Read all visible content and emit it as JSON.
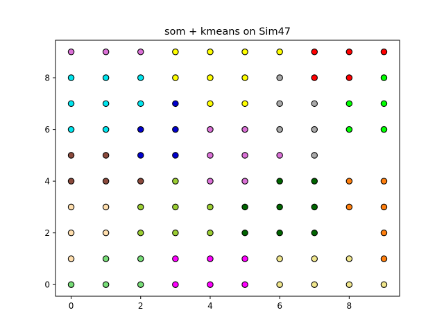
{
  "chart_data": {
    "type": "scatter",
    "title": "som + kmeans on Sim47",
    "xlabel": "",
    "ylabel": "",
    "xlim": [
      -0.45,
      9.45
    ],
    "ylim": [
      -0.45,
      9.45
    ],
    "xticks": [
      0,
      2,
      4,
      6,
      8
    ],
    "yticks": [
      0,
      2,
      4,
      6,
      8
    ],
    "grid": false,
    "legend": "none",
    "marker_edge_color": "#000000",
    "cluster_colors": {
      "lightgreen": "#77dd77",
      "magenta": "#ff00ff",
      "khaki": "#f0e68c",
      "orange": "#ff7f0e",
      "wheat": "#ffdead",
      "olive": "#9acd32",
      "darkgreen": "#006400",
      "sienna": "#8b4a3c",
      "pink": "#da70d6",
      "blue": "#0000cd",
      "cyan": "#00e5ee",
      "yellow": "#ffff00",
      "gray": "#a9a9a9",
      "red": "#ff0000",
      "green": "#00ff00"
    },
    "points": [
      {
        "x": 0,
        "y": 0,
        "c": "lightgreen"
      },
      {
        "x": 1,
        "y": 0,
        "c": "lightgreen"
      },
      {
        "x": 2,
        "y": 0,
        "c": "lightgreen"
      },
      {
        "x": 3,
        "y": 0,
        "c": "magenta"
      },
      {
        "x": 4,
        "y": 0,
        "c": "magenta"
      },
      {
        "x": 5,
        "y": 0,
        "c": "magenta"
      },
      {
        "x": 6,
        "y": 0,
        "c": "khaki"
      },
      {
        "x": 7,
        "y": 0,
        "c": "khaki"
      },
      {
        "x": 8,
        "y": 0,
        "c": "khaki"
      },
      {
        "x": 9,
        "y": 0,
        "c": "khaki"
      },
      {
        "x": 0,
        "y": 1,
        "c": "wheat"
      },
      {
        "x": 1,
        "y": 1,
        "c": "lightgreen"
      },
      {
        "x": 2,
        "y": 1,
        "c": "lightgreen"
      },
      {
        "x": 3,
        "y": 1,
        "c": "magenta"
      },
      {
        "x": 4,
        "y": 1,
        "c": "magenta"
      },
      {
        "x": 5,
        "y": 1,
        "c": "magenta"
      },
      {
        "x": 6,
        "y": 1,
        "c": "khaki"
      },
      {
        "x": 7,
        "y": 1,
        "c": "khaki"
      },
      {
        "x": 8,
        "y": 1,
        "c": "khaki"
      },
      {
        "x": 9,
        "y": 1,
        "c": "orange"
      },
      {
        "x": 0,
        "y": 2,
        "c": "wheat"
      },
      {
        "x": 1,
        "y": 2,
        "c": "wheat"
      },
      {
        "x": 2,
        "y": 2,
        "c": "olive"
      },
      {
        "x": 3,
        "y": 2,
        "c": "olive"
      },
      {
        "x": 4,
        "y": 2,
        "c": "olive"
      },
      {
        "x": 5,
        "y": 2,
        "c": "darkgreen"
      },
      {
        "x": 6,
        "y": 2,
        "c": "darkgreen"
      },
      {
        "x": 7,
        "y": 2,
        "c": "darkgreen"
      },
      {
        "x": 9,
        "y": 2,
        "c": "orange"
      },
      {
        "x": 0,
        "y": 3,
        "c": "wheat"
      },
      {
        "x": 1,
        "y": 3,
        "c": "wheat"
      },
      {
        "x": 2,
        "y": 3,
        "c": "olive"
      },
      {
        "x": 3,
        "y": 3,
        "c": "olive"
      },
      {
        "x": 4,
        "y": 3,
        "c": "olive"
      },
      {
        "x": 5,
        "y": 3,
        "c": "darkgreen"
      },
      {
        "x": 6,
        "y": 3,
        "c": "darkgreen"
      },
      {
        "x": 7,
        "y": 3,
        "c": "darkgreen"
      },
      {
        "x": 8,
        "y": 3,
        "c": "orange"
      },
      {
        "x": 9,
        "y": 3,
        "c": "orange"
      },
      {
        "x": 0,
        "y": 4,
        "c": "sienna"
      },
      {
        "x": 1,
        "y": 4,
        "c": "sienna"
      },
      {
        "x": 2,
        "y": 4,
        "c": "sienna"
      },
      {
        "x": 3,
        "y": 4,
        "c": "olive"
      },
      {
        "x": 4,
        "y": 4,
        "c": "pink"
      },
      {
        "x": 5,
        "y": 4,
        "c": "pink"
      },
      {
        "x": 6,
        "y": 4,
        "c": "darkgreen"
      },
      {
        "x": 7,
        "y": 4,
        "c": "darkgreen"
      },
      {
        "x": 8,
        "y": 4,
        "c": "orange"
      },
      {
        "x": 9,
        "y": 4,
        "c": "orange"
      },
      {
        "x": 0,
        "y": 5,
        "c": "sienna"
      },
      {
        "x": 1,
        "y": 5,
        "c": "sienna"
      },
      {
        "x": 2,
        "y": 5,
        "c": "blue"
      },
      {
        "x": 3,
        "y": 5,
        "c": "blue"
      },
      {
        "x": 4,
        "y": 5,
        "c": "pink"
      },
      {
        "x": 5,
        "y": 5,
        "c": "pink"
      },
      {
        "x": 6,
        "y": 5,
        "c": "pink"
      },
      {
        "x": 7,
        "y": 5,
        "c": "gray"
      },
      {
        "x": 0,
        "y": 6,
        "c": "cyan"
      },
      {
        "x": 1,
        "y": 6,
        "c": "cyan"
      },
      {
        "x": 2,
        "y": 6,
        "c": "blue"
      },
      {
        "x": 3,
        "y": 6,
        "c": "blue"
      },
      {
        "x": 4,
        "y": 6,
        "c": "pink"
      },
      {
        "x": 5,
        "y": 6,
        "c": "pink"
      },
      {
        "x": 6,
        "y": 6,
        "c": "gray"
      },
      {
        "x": 7,
        "y": 6,
        "c": "gray"
      },
      {
        "x": 8,
        "y": 6,
        "c": "green"
      },
      {
        "x": 9,
        "y": 6,
        "c": "green"
      },
      {
        "x": 0,
        "y": 7,
        "c": "cyan"
      },
      {
        "x": 1,
        "y": 7,
        "c": "cyan"
      },
      {
        "x": 2,
        "y": 7,
        "c": "cyan"
      },
      {
        "x": 3,
        "y": 7,
        "c": "blue"
      },
      {
        "x": 4,
        "y": 7,
        "c": "yellow"
      },
      {
        "x": 5,
        "y": 7,
        "c": "yellow"
      },
      {
        "x": 6,
        "y": 7,
        "c": "gray"
      },
      {
        "x": 7,
        "y": 7,
        "c": "gray"
      },
      {
        "x": 8,
        "y": 7,
        "c": "green"
      },
      {
        "x": 9,
        "y": 7,
        "c": "green"
      },
      {
        "x": 0,
        "y": 8,
        "c": "cyan"
      },
      {
        "x": 1,
        "y": 8,
        "c": "cyan"
      },
      {
        "x": 2,
        "y": 8,
        "c": "cyan"
      },
      {
        "x": 3,
        "y": 8,
        "c": "yellow"
      },
      {
        "x": 4,
        "y": 8,
        "c": "yellow"
      },
      {
        "x": 5,
        "y": 8,
        "c": "yellow"
      },
      {
        "x": 6,
        "y": 8,
        "c": "gray"
      },
      {
        "x": 7,
        "y": 8,
        "c": "red"
      },
      {
        "x": 8,
        "y": 8,
        "c": "red"
      },
      {
        "x": 9,
        "y": 8,
        "c": "green"
      },
      {
        "x": 0,
        "y": 9,
        "c": "pink"
      },
      {
        "x": 1,
        "y": 9,
        "c": "pink"
      },
      {
        "x": 2,
        "y": 9,
        "c": "pink"
      },
      {
        "x": 3,
        "y": 9,
        "c": "yellow"
      },
      {
        "x": 4,
        "y": 9,
        "c": "yellow"
      },
      {
        "x": 5,
        "y": 9,
        "c": "yellow"
      },
      {
        "x": 6,
        "y": 9,
        "c": "yellow"
      },
      {
        "x": 7,
        "y": 9,
        "c": "red"
      },
      {
        "x": 8,
        "y": 9,
        "c": "red"
      },
      {
        "x": 9,
        "y": 9,
        "c": "red"
      }
    ]
  }
}
